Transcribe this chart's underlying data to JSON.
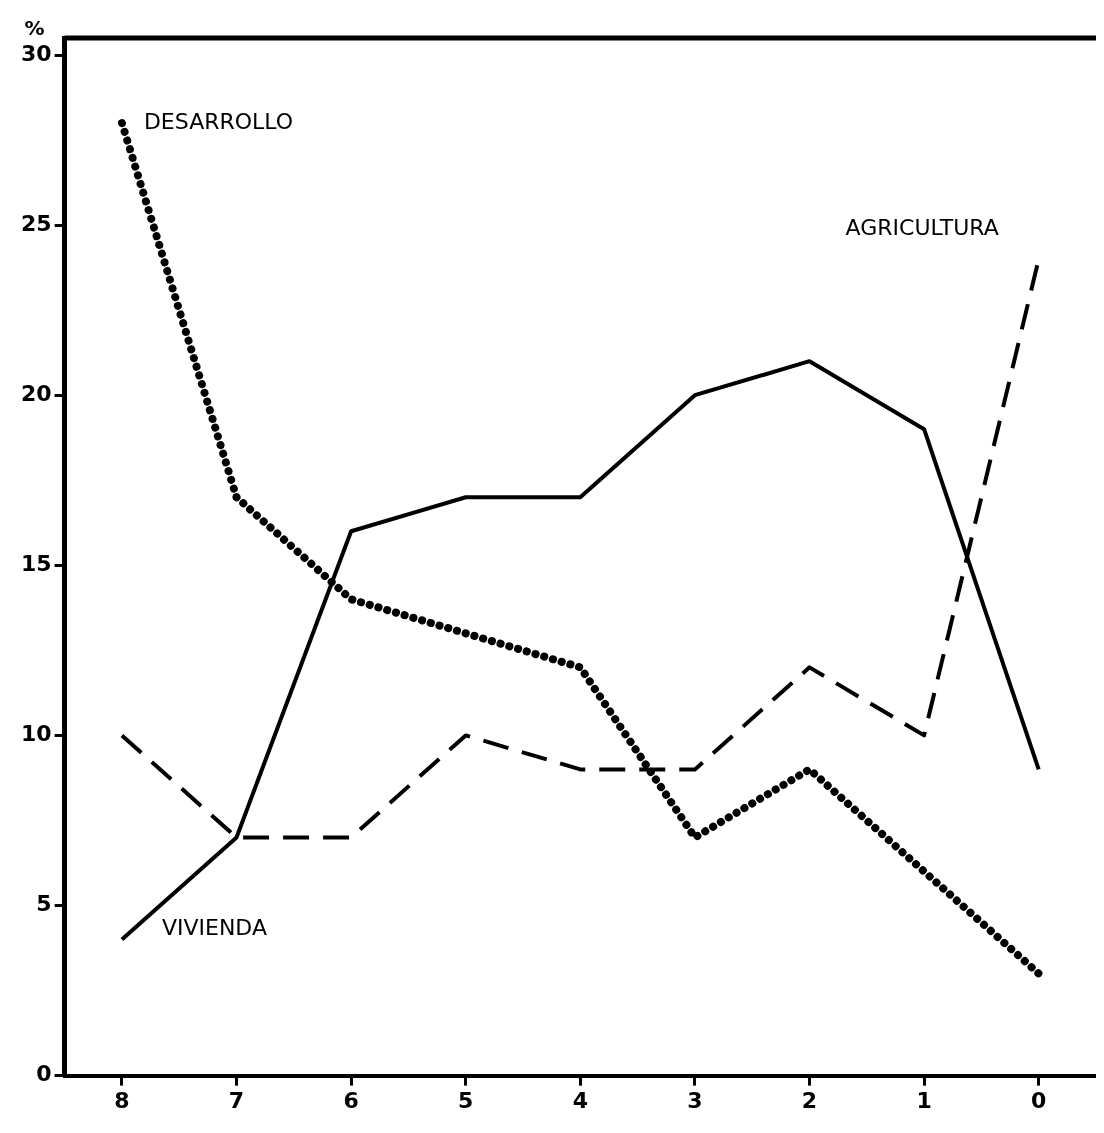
{
  "chart_data": {
    "type": "line",
    "ylabel": "%",
    "categories": [
      "8",
      "7",
      "6",
      "5",
      "4",
      "3",
      "2",
      "1",
      "0"
    ],
    "series": [
      {
        "name": "DESARROLLO",
        "color": "#000000",
        "line_style": "dotted",
        "values": [
          28,
          17,
          14,
          13,
          12,
          7,
          9,
          6,
          3
        ]
      },
      {
        "name": "VIVIENDA",
        "color": "#000000",
        "line_style": "solid",
        "values": [
          4,
          7,
          16,
          17,
          17,
          20,
          21,
          19,
          9
        ]
      },
      {
        "name": "AGRICULTURA",
        "color": "#000000",
        "line_style": "dashed",
        "values": [
          10,
          7,
          7,
          10,
          9,
          9,
          12,
          10,
          24
        ]
      }
    ],
    "ylim": [
      0,
      30.5
    ],
    "yticks": [
      0,
      5,
      10,
      15,
      20,
      25,
      30
    ],
    "grid": false,
    "legend": false,
    "marker": "none"
  }
}
